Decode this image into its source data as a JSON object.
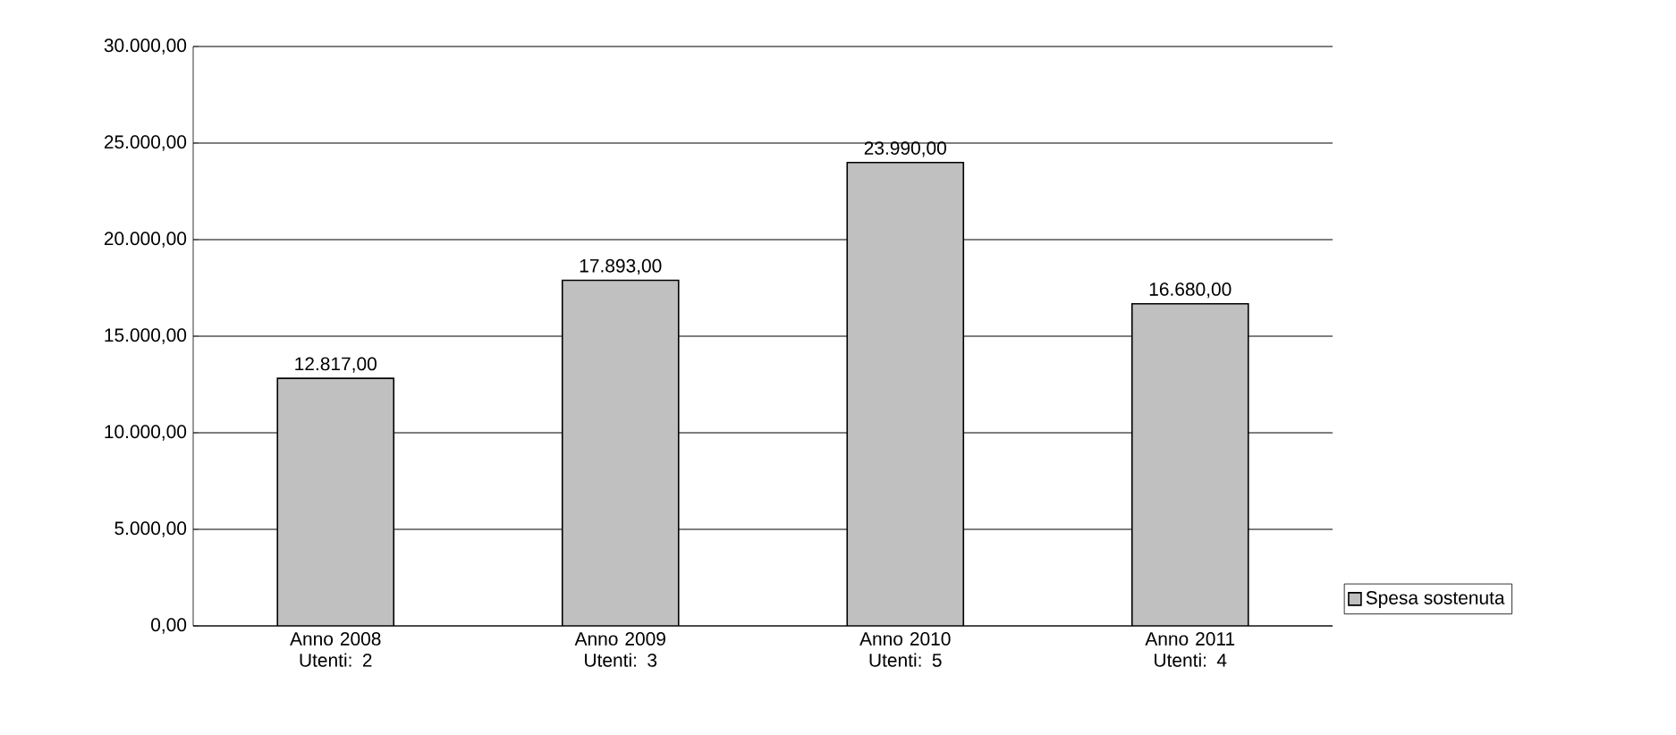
{
  "chart_data": {
    "type": "bar",
    "categories": [
      "Anno 2008 Utenti: 2",
      "Anno 2009 Utenti: 3",
      "Anno 2010 Utenti: 5",
      "Anno 2011 Utenti: 4"
    ],
    "series": [
      {
        "name": "Spesa sostenuta",
        "color": "#c0c0c0",
        "values": [
          12817,
          17893,
          23990,
          16680
        ],
        "value_labels": [
          "12.817,00",
          "17.893,00",
          "23.990,00",
          "16.680,00"
        ]
      }
    ],
    "ylim": [
      0,
      30000
    ],
    "yticks": [
      {
        "value": 0,
        "label": "0,00"
      },
      {
        "value": 5000,
        "label": "5.000,00"
      },
      {
        "value": 10000,
        "label": "10.000,00"
      },
      {
        "value": 15000,
        "label": "15.000,00"
      },
      {
        "value": 20000,
        "label": "20.000,00"
      },
      {
        "value": 25000,
        "label": "25.000,00"
      },
      {
        "value": 30000,
        "label": "30.000,00"
      }
    ],
    "grid": "y",
    "legend": "right"
  }
}
